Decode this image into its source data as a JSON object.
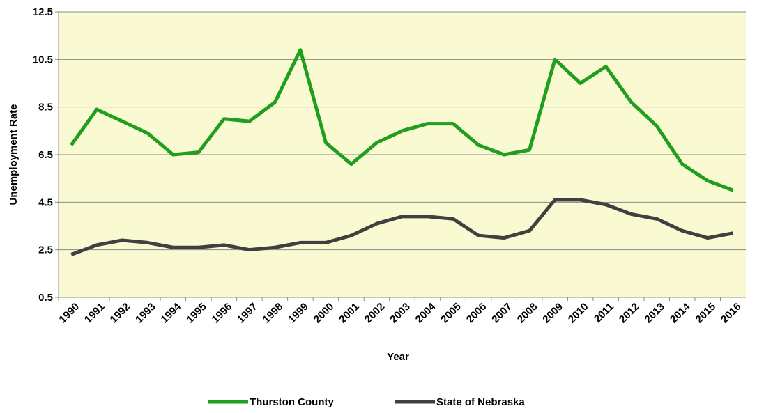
{
  "chart_data": {
    "type": "line",
    "x_label": "Year",
    "y_label": "Unemployment Rate",
    "categories": [
      "1990",
      "1991",
      "1992",
      "1993",
      "1994",
      "1995",
      "1996",
      "1997",
      "1998",
      "1999",
      "2000",
      "2001",
      "2002",
      "2003",
      "2004",
      "2005",
      "2006",
      "2007",
      "2008",
      "2009",
      "2010",
      "2011",
      "2012",
      "2013",
      "2014",
      "2015",
      "2016"
    ],
    "series": [
      {
        "name": "Thurston County",
        "color": "#1f9e1f",
        "values": [
          6.9,
          8.4,
          7.9,
          7.4,
          6.5,
          6.6,
          8.0,
          7.9,
          8.7,
          10.9,
          7.0,
          6.1,
          7.0,
          7.5,
          7.8,
          7.8,
          6.9,
          6.5,
          6.7,
          10.5,
          9.5,
          10.2,
          8.7,
          7.7,
          6.1,
          5.4,
          5.0
        ]
      },
      {
        "name": "State of Nebraska",
        "color": "#404040",
        "values": [
          2.3,
          2.7,
          2.9,
          2.8,
          2.6,
          2.6,
          2.7,
          2.5,
          2.6,
          2.8,
          2.8,
          3.1,
          3.6,
          3.9,
          3.9,
          3.8,
          3.1,
          3.0,
          3.3,
          4.6,
          4.6,
          4.4,
          4.0,
          3.8,
          3.3,
          3.0,
          3.2
        ]
      }
    ],
    "ylim": [
      0.5,
      12.5
    ],
    "yticks": [
      0.5,
      2.5,
      4.5,
      6.5,
      8.5,
      10.5,
      12.5
    ],
    "grid": true,
    "legend": "bottom",
    "plot_background": "#fafad2"
  }
}
